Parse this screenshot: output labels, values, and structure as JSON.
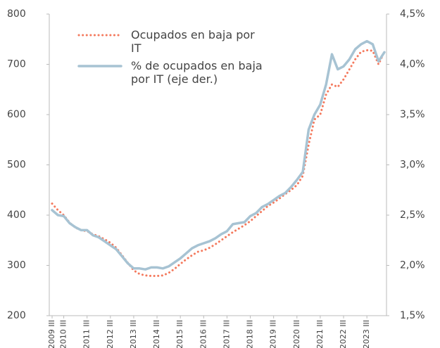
{
  "chart_data": {
    "type": "line",
    "categories": [
      "2009 III",
      null,
      "2010 III",
      null,
      null,
      null,
      "2011 III",
      null,
      null,
      null,
      "2012 III",
      null,
      null,
      null,
      "2013 III",
      null,
      null,
      null,
      "2014 III",
      null,
      null,
      null,
      "2015 III",
      null,
      null,
      null,
      "2016 III",
      null,
      null,
      null,
      "2017 III",
      null,
      null,
      null,
      "2018 III",
      null,
      null,
      null,
      "2019 III",
      null,
      null,
      null,
      "2020 III",
      null,
      null,
      null,
      "2021 III",
      null,
      null,
      null,
      "2022 III",
      null,
      null,
      null,
      "2023 III",
      null,
      null,
      null
    ],
    "series": [
      {
        "name": "Ocupados en baja por IT",
        "color": "#f47a5e",
        "dash": true,
        "values": [
          423,
          410,
          400,
          385,
          375,
          370,
          368,
          362,
          358,
          352,
          345,
          335,
          320,
          305,
          290,
          283,
          280,
          279,
          279,
          280,
          285,
          293,
          303,
          312,
          320,
          327,
          330,
          335,
          342,
          350,
          358,
          366,
          373,
          380,
          388,
          398,
          408,
          418,
          425,
          433,
          442,
          450,
          460,
          478,
          540,
          590,
          600,
          640,
          660,
          655,
          670,
          690,
          710,
          725,
          728,
          727,
          700,
          725
        ]
      },
      {
        "name": "% de ocupados en baja por IT (eje der.)",
        "color": "#a7c3d3",
        "axis": "y2",
        "values": [
          2.55,
          2.5,
          2.49,
          2.42,
          2.38,
          2.35,
          2.35,
          2.3,
          2.28,
          2.24,
          2.2,
          2.16,
          2.09,
          2.02,
          1.97,
          1.97,
          1.96,
          1.98,
          1.98,
          1.97,
          1.99,
          2.03,
          2.07,
          2.12,
          2.17,
          2.2,
          2.22,
          2.24,
          2.27,
          2.31,
          2.34,
          2.41,
          2.42,
          2.43,
          2.49,
          2.52,
          2.58,
          2.61,
          2.65,
          2.69,
          2.72,
          2.78,
          2.85,
          2.93,
          3.35,
          3.5,
          3.6,
          3.8,
          4.1,
          3.95,
          3.98,
          4.05,
          4.15,
          4.2,
          4.23,
          4.2,
          4.03,
          4.12
        ]
      }
    ],
    "ylim": [
      200,
      800
    ],
    "yticks": [
      200,
      300,
      400,
      500,
      600,
      700,
      800
    ],
    "y2lim": [
      1.5,
      4.5
    ],
    "y2ticks": [
      {
        "value": 1.5,
        "label": "1,5%"
      },
      {
        "value": 2,
        "label": "2,0%"
      },
      {
        "value": 2.5,
        "label": "2,5%"
      },
      {
        "value": 3,
        "label": "3,0%"
      },
      {
        "value": 3.5,
        "label": "3,5%"
      },
      {
        "value": 4,
        "label": "4,0%"
      },
      {
        "value": 4.5,
        "label": "4,5%"
      }
    ],
    "grid": false
  }
}
